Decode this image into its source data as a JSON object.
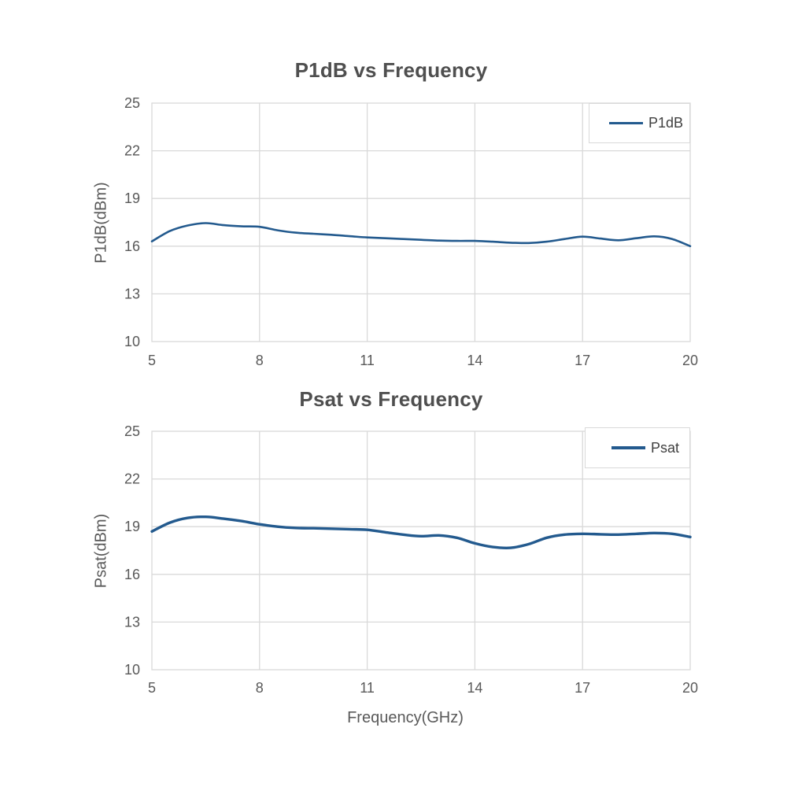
{
  "colors": {
    "line": "#235a8e",
    "grid": "#d9d9d9",
    "tick_text": "#595959",
    "title_text": "#4f4f4f",
    "legend_text": "#404040",
    "background": "#ffffff"
  },
  "chart_data": [
    {
      "type": "line",
      "title": "P1dB vs Frequency",
      "xlabel": "",
      "ylabel": "P1dB(dBm)",
      "legend": [
        "P1dB"
      ],
      "legend_position": "top-right",
      "grid": true,
      "xlim": [
        5,
        20
      ],
      "ylim": [
        10,
        25
      ],
      "x_ticks": [
        5,
        8,
        11,
        14,
        17,
        20
      ],
      "y_ticks": [
        10,
        13,
        16,
        19,
        22,
        25
      ],
      "series": [
        {
          "name": "P1dB",
          "color": "#235a8e",
          "width": 2.6,
          "x": [
            5,
            5.5,
            6,
            6.5,
            7,
            7.5,
            8,
            8.5,
            9,
            9.5,
            10,
            10.5,
            11,
            11.5,
            12,
            12.5,
            13,
            13.5,
            14,
            14.5,
            15,
            15.5,
            16,
            16.5,
            17,
            17.5,
            18,
            18.5,
            19,
            19.5,
            20
          ],
          "y": [
            16.3,
            16.95,
            17.3,
            17.45,
            17.32,
            17.25,
            17.22,
            17.0,
            16.85,
            16.78,
            16.72,
            16.63,
            16.55,
            16.5,
            16.45,
            16.4,
            16.35,
            16.33,
            16.33,
            16.28,
            16.22,
            16.2,
            16.28,
            16.45,
            16.6,
            16.48,
            16.37,
            16.5,
            16.62,
            16.45,
            16.0
          ]
        }
      ]
    },
    {
      "type": "line",
      "title": "Psat vs Frequency",
      "xlabel": "Frequency(GHz)",
      "ylabel": "Psat(dBm)",
      "legend": [
        "Psat"
      ],
      "legend_position": "top-right",
      "grid": true,
      "xlim": [
        5,
        20
      ],
      "ylim": [
        10,
        25
      ],
      "x_ticks": [
        5,
        8,
        11,
        14,
        17,
        20
      ],
      "y_ticks": [
        10,
        13,
        16,
        19,
        22,
        25
      ],
      "series": [
        {
          "name": "Psat",
          "color": "#235a8e",
          "width": 3.4,
          "x": [
            5,
            5.5,
            6,
            6.5,
            7,
            7.5,
            8,
            8.5,
            9,
            9.5,
            10,
            10.5,
            11,
            11.5,
            12,
            12.5,
            13,
            13.5,
            14,
            14.5,
            15,
            15.5,
            16,
            16.5,
            17,
            17.5,
            18,
            18.5,
            19,
            19.5,
            20
          ],
          "y": [
            18.7,
            19.25,
            19.55,
            19.62,
            19.5,
            19.35,
            19.15,
            19.0,
            18.92,
            18.9,
            18.87,
            18.84,
            18.8,
            18.65,
            18.5,
            18.4,
            18.45,
            18.3,
            17.95,
            17.72,
            17.67,
            17.9,
            18.3,
            18.5,
            18.55,
            18.52,
            18.5,
            18.55,
            18.6,
            18.55,
            18.35
          ]
        }
      ]
    }
  ]
}
